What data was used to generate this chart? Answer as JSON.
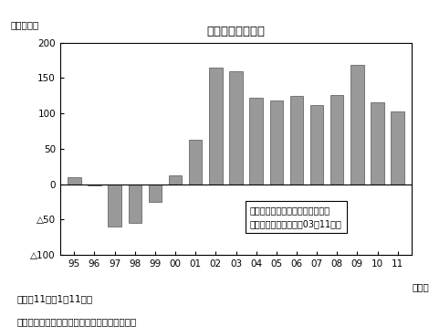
{
  "title": "貿易収支額の推移",
  "ylabel": "（億ドル）",
  "xlabel_suffix": "（年）",
  "categories": [
    "95",
    "96",
    "97",
    "98",
    "99",
    "00",
    "01",
    "02",
    "03",
    "04",
    "05",
    "06",
    "07",
    "08",
    "09",
    "10",
    "11"
  ],
  "values": [
    10,
    -2,
    -60,
    -55,
    -25,
    12,
    63,
    165,
    160,
    122,
    118,
    124,
    112,
    126,
    168,
    116,
    103
  ],
  "bar_color": "#999999",
  "bar_edge_color": "#555555",
  "ylim_min": -100,
  "ylim_max": 200,
  "yticks": [
    -100,
    -50,
    0,
    50,
    100,
    150,
    200
  ],
  "note1": "（注）11年は1～11月。",
  "note2": "（出所）国家統計センサス局の資料を基に作成",
  "legend_line1": "キルチネルおよびフェルナンデス",
  "legend_line2": "政権下で黒字を維持（03～11年）",
  "background_color": "#ffffff"
}
